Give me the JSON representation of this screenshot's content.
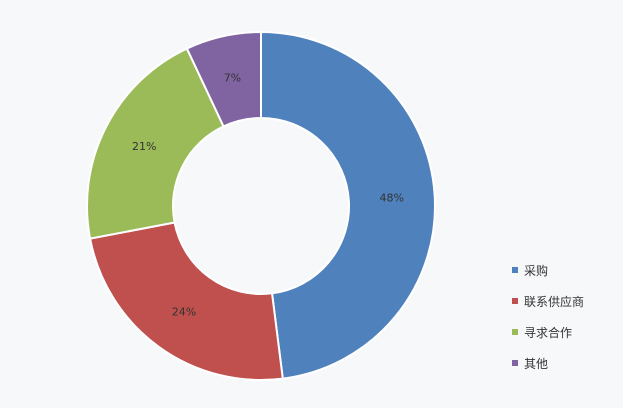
{
  "chart_data": {
    "type": "pie",
    "variant": "donut",
    "title": "",
    "categories": [
      "采购",
      "联系供应商",
      "寻求合作",
      "其他"
    ],
    "values": [
      48,
      24,
      21,
      7
    ],
    "labels": [
      "48%",
      "24%",
      "21%",
      "7%"
    ],
    "colors": [
      "#4f81bd",
      "#c0504d",
      "#9bbb59",
      "#8064a2"
    ],
    "legend_position": "bottom-right"
  },
  "legend": {
    "items": [
      {
        "label": "采购",
        "color": "#4f81bd"
      },
      {
        "label": "联系供应商",
        "color": "#c0504d"
      },
      {
        "label": "寻求合作",
        "color": "#9bbb59"
      },
      {
        "label": "其他",
        "color": "#8064a2"
      }
    ]
  }
}
